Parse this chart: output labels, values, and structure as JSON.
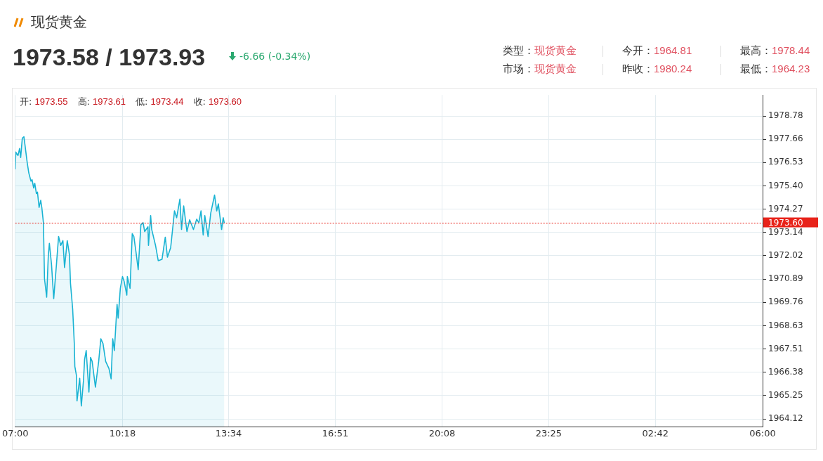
{
  "chart_data": {
    "type": "area",
    "title": "现货黄金",
    "subtitle": "1973.58 / 1973.93",
    "annotations": [
      "-6.66 (-0.34%)",
      "类型：现货黄金",
      "今开：1964.81",
      "最高：1978.44",
      "市场：现货黄金",
      "昨收：1980.24",
      "最低：1964.23",
      "开: 1973.55",
      "高: 1973.61",
      "低: 1973.44",
      "收: 1973.60"
    ],
    "x": [
      "--06-01T07:00",
      "--06-01T07:01",
      "--06-01T07:05",
      "--06-01T07:08",
      "--06-01T07:10",
      "--06-01T07:13",
      "--06-01T07:16",
      "--06-01T07:18",
      "--06-01T07:22",
      "--06-01T07:25",
      "--06-01T07:29",
      "--06-01T07:31",
      "--06-01T07:34",
      "--06-01T07:36",
      "--06-01T07:39",
      "--06-01T07:41",
      "--06-01T07:44",
      "--06-01T07:47",
      "--06-01T07:49",
      "--06-01T07:52",
      "--06-01T07:54",
      "--06-01T07:58",
      "--06-01T08:01",
      "--06-01T08:03",
      "--06-01T08:07",
      "--06-01T08:11",
      "--06-01T08:16",
      "--06-01T08:20",
      "--06-01T08:24",
      "--06-01T08:28",
      "--06-01T08:31",
      "--06-01T08:36",
      "--06-01T08:40",
      "--06-01T08:42",
      "--06-01T08:46",
      "--06-01T08:49",
      "--06-01T08:50",
      "--06-01T08:53",
      "--06-01T08:54",
      "--06-01T08:59",
      "--06-01T09:02",
      "--06-01T09:06",
      "--06-01T09:08",
      "--06-01T09:11",
      "--06-01T09:16",
      "--06-01T09:19",
      "--06-01T09:22",
      "--06-01T09:28",
      "--06-01T09:34",
      "--06-01T09:38",
      "--06-01T09:42",
      "--06-01T09:47",
      "--06-01T09:53",
      "--06-01T09:57",
      "--06-01T10:00",
      "--06-01T10:03",
      "--06-01T10:08",
      "--06-01T10:10",
      "--06-01T10:14",
      "--06-01T10:18",
      "--06-01T10:21",
      "--06-01T10:26",
      "--06-01T10:27",
      "--06-01T10:32",
      "--06-01T10:36",
      "--06-01T10:39",
      "--06-01T10:43",
      "--06-01T10:47",
      "--06-01T10:52",
      "--06-01T10:56",
      "--06-01T10:59",
      "--06-01T11:05",
      "--06-01T11:06",
      "--06-01T11:10",
      "--06-01T11:12",
      "--06-01T11:19",
      "--06-01T11:24",
      "--06-01T11:31",
      "--06-01T11:37",
      "--06-01T11:41",
      "--06-01T11:47",
      "--06-01T11:51",
      "--06-01T11:54",
      "--06-01T11:58",
      "--06-01T12:04",
      "--06-01T12:07",
      "--06-01T12:11",
      "--06-01T12:17",
      "--06-01T12:22",
      "--06-01T12:29",
      "--06-01T12:35",
      "--06-01T12:39",
      "--06-01T12:43",
      "--06-01T12:47",
      "--06-01T12:50",
      "--06-01T12:56",
      "--06-01T13:01",
      "--06-01T13:08",
      "--06-01T13:12",
      "--06-01T13:15",
      "--06-01T13:21",
      "--06-01T13:24",
      "--06-01T13:26"
    ],
    "series": [
      {
        "color": "#1ab3d3",
        "values": [
          1976.2,
          1977.04,
          1976.87,
          1977.21,
          1976.77,
          1977.71,
          1977.78,
          1977.37,
          1976.54,
          1976.03,
          1975.63,
          1975.7,
          1975.3,
          1975.53,
          1975.03,
          1975.1,
          1974.36,
          1974.7,
          1974.36,
          1973.62,
          1970.91,
          1970.01,
          1972.02,
          1972.62,
          1971.58,
          1969.94,
          1971.58,
          1972.95,
          1972.52,
          1972.75,
          1971.45,
          1972.75,
          1972.08,
          1970.68,
          1969.44,
          1967.77,
          1966.66,
          1966.22,
          1964.99,
          1966.09,
          1964.75,
          1965.99,
          1967.0,
          1967.43,
          1965.42,
          1967.1,
          1966.9,
          1965.66,
          1966.9,
          1968.0,
          1967.77,
          1966.9,
          1966.56,
          1966.06,
          1968.0,
          1967.43,
          1969.67,
          1969.0,
          1970.44,
          1971.01,
          1970.78,
          1970.11,
          1971.01,
          1970.44,
          1973.09,
          1972.95,
          1972.18,
          1971.35,
          1973.52,
          1973.62,
          1973.19,
          1973.42,
          1972.52,
          1973.96,
          1973.29,
          1972.52,
          1971.78,
          1971.85,
          1972.92,
          1971.95,
          1972.42,
          1973.42,
          1974.19,
          1973.86,
          1974.76,
          1973.29,
          1974.43,
          1973.19,
          1973.76,
          1973.29,
          1973.79,
          1973.62,
          1974.19,
          1973.02,
          1973.96,
          1972.95,
          1974.09,
          1974.96,
          1974.19,
          1974.53,
          1973.29,
          1973.86,
          1973.6
        ]
      }
    ],
    "xlim": [
      "--06-01T07:00",
      "--06-02T06:00"
    ],
    "xticks": [
      {
        "value": "--06-01T07:00",
        "label": "07:00"
      },
      {
        "value": "--06-01T10:18",
        "label": "10:18"
      },
      {
        "value": "--06-01T13:34",
        "label": "13:34"
      },
      {
        "value": "--06-01T16:51",
        "label": "16:51"
      },
      {
        "value": "--06-01T20:08",
        "label": "20:08"
      },
      {
        "value": "--06-01T23:25",
        "label": "23:25"
      },
      {
        "value": "--06-02T02:42",
        "label": "02:42"
      },
      {
        "value": "--06-02T06:00",
        "label": "06:00"
      }
    ],
    "ylim": [
      1963.75,
      1979.8
    ],
    "yticks": [
      1964.12,
      1965.25,
      1966.38,
      1967.51,
      1968.63,
      1969.76,
      1970.89,
      1972.02,
      1973.14,
      1974.27,
      {
        "value": 1975.4,
        "label": "1975.40"
      },
      1976.53,
      1977.66,
      1978.78
    ],
    "ref_lines": [
      {
        "axis": "y",
        "value": 1973.6,
        "label": "1973.60",
        "color": "#e8231a",
        "line_style": "dotted"
      }
    ],
    "grid": true,
    "legend": false,
    "marker": "none",
    "line_style": "solid"
  }
}
